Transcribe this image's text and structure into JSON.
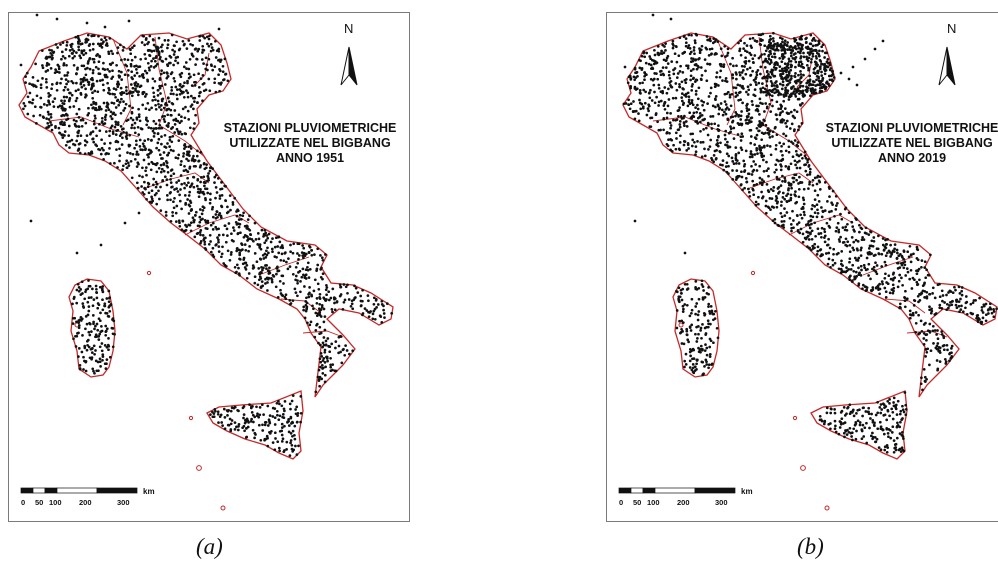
{
  "maps": [
    {
      "caption": "(a)",
      "title_lines": [
        "STAZIONI PLUVIOMETRICHE",
        "UTILIZZATE NEL BIGBANG",
        "ANNO 1951"
      ],
      "north_label": "N",
      "scale_unit": "km",
      "scale_ticks": [
        "0",
        "50",
        "100",
        "200",
        "300"
      ]
    },
    {
      "caption": "(b)",
      "title_lines": [
        "STAZIONI PLUVIOMETRICHE",
        "UTILIZZATE NEL BIGBANG",
        "ANNO 2019"
      ],
      "north_label": "N",
      "scale_unit": "km",
      "scale_ticks": [
        "0",
        "50",
        "100",
        "200",
        "300"
      ]
    }
  ],
  "colors": {
    "border": "#c62828",
    "stations": "#111111",
    "frame": "#7a7a7a"
  }
}
